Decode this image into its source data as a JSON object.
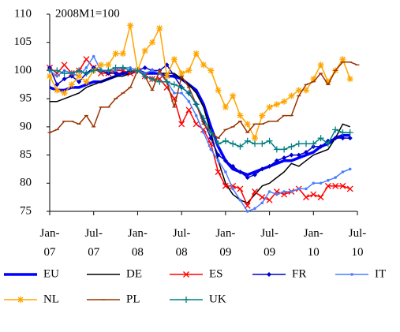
{
  "chart_data": {
    "type": "line",
    "annotation": "2008M1=100",
    "x": [
      "2007-01",
      "2007-02",
      "2007-03",
      "2007-04",
      "2007-05",
      "2007-06",
      "2007-07",
      "2007-08",
      "2007-09",
      "2007-10",
      "2007-11",
      "2007-12",
      "2008-01",
      "2008-02",
      "2008-03",
      "2008-04",
      "2008-05",
      "2008-06",
      "2008-07",
      "2008-08",
      "2008-09",
      "2008-10",
      "2008-11",
      "2008-12",
      "2009-01",
      "2009-02",
      "2009-03",
      "2009-04",
      "2009-05",
      "2009-06",
      "2009-07",
      "2009-08",
      "2009-09",
      "2009-10",
      "2009-11",
      "2009-12",
      "2010-01",
      "2010-02",
      "2010-03",
      "2010-04",
      "2010-05",
      "2010-06",
      "2010-07"
    ],
    "xlim": [
      "2007-01",
      "2010-07"
    ],
    "xticks": [
      {
        "value": "2007-01",
        "label": "Jan-07"
      },
      {
        "value": "2007-07",
        "label": "Jul-07"
      },
      {
        "value": "2008-01",
        "label": "Jan-08"
      },
      {
        "value": "2008-07",
        "label": "Jul-08"
      },
      {
        "value": "2009-01",
        "label": "Jan-09"
      },
      {
        "value": "2009-07",
        "label": "Jul-09"
      },
      {
        "value": "2010-01",
        "label": "Jan-10"
      },
      {
        "value": "2010-07",
        "label": "Jul-10"
      }
    ],
    "ylim": [
      75,
      110
    ],
    "yticks": [
      75,
      80,
      85,
      90,
      95,
      100,
      105,
      110
    ],
    "series": [
      {
        "name": "EU",
        "color": "#0000ff",
        "marker": "none",
        "line_width": 3.5,
        "values": [
          97,
          96.5,
          96.5,
          97,
          97,
          97.5,
          98,
          98,
          98.5,
          99,
          99.5,
          99.5,
          100,
          99.5,
          99.5,
          99.5,
          99,
          99,
          98.5,
          97.5,
          96.5,
          94,
          90,
          86.5,
          84,
          82.5,
          82,
          81.5,
          82,
          82.5,
          83,
          83.5,
          84,
          84,
          84.5,
          85,
          85.5,
          86.5,
          87,
          88,
          88.5,
          88.5,
          null
        ]
      },
      {
        "name": "DE",
        "color": "#000000",
        "marker": "none",
        "line_width": 1.5,
        "values": [
          94.5,
          94.5,
          95,
          95.5,
          96,
          97,
          97.5,
          98,
          98.5,
          99,
          99,
          99.5,
          100,
          99.5,
          100,
          99.5,
          99.5,
          99.5,
          98.5,
          97.5,
          96,
          93.5,
          89,
          84,
          80,
          78,
          77,
          76.5,
          78,
          79.5,
          80,
          81,
          82,
          83.5,
          83,
          84,
          85,
          85.5,
          86,
          88,
          90.5,
          90,
          null
        ]
      },
      {
        "name": "ES",
        "color": "#ff0000",
        "marker": "x",
        "line_width": 1.5,
        "values": [
          100.5,
          99.5,
          101,
          99.5,
          100,
          102,
          100.5,
          99.5,
          99.5,
          100,
          100,
          99.5,
          100,
          99,
          98.5,
          98.5,
          97,
          95,
          90.5,
          93,
          90.5,
          89.5,
          87,
          82,
          79.5,
          79.5,
          79,
          76,
          78.5,
          77.5,
          77,
          78.5,
          78,
          78.5,
          79,
          77.5,
          78,
          77.5,
          79.5,
          79.5,
          79.5,
          79,
          null
        ]
      },
      {
        "name": "FR",
        "color": "#0000cc",
        "marker": "diamond",
        "line_width": 1.5,
        "values": [
          100.5,
          97.5,
          98.5,
          99,
          98,
          99.5,
          100.5,
          100,
          99.5,
          99.5,
          99.5,
          100,
          100,
          100.5,
          100,
          100,
          101,
          99,
          97,
          96,
          94,
          91,
          88,
          85,
          84,
          83,
          82,
          81,
          81.5,
          82.5,
          83,
          84,
          84.5,
          85,
          85,
          85.5,
          86.5,
          86.5,
          87.5,
          88,
          88,
          88,
          null
        ]
      },
      {
        "name": "IT",
        "color": "#4a7dff",
        "marker": "dot",
        "line_width": 1.5,
        "values": [
          100,
          99,
          100,
          99.5,
          99,
          100.5,
          102.5,
          100,
          100,
          100,
          100.5,
          100.5,
          100,
          99.5,
          100,
          99.5,
          98,
          96,
          96,
          94.5,
          92,
          89,
          86,
          84,
          82,
          79,
          77,
          75,
          75.5,
          76.5,
          78.5,
          78,
          78.5,
          78.5,
          79,
          79,
          80,
          80,
          80.5,
          81,
          82,
          82.5,
          null
        ]
      },
      {
        "name": "NL",
        "color": "#ffa500",
        "marker": "star",
        "line_width": 1.5,
        "values": [
          99,
          96.5,
          96,
          97.5,
          99,
          98,
          100,
          101,
          101,
          103,
          103,
          108,
          100,
          103.5,
          105,
          107.5,
          99,
          102,
          99.5,
          100,
          103,
          101,
          100,
          96.5,
          93.5,
          95.5,
          92,
          90.5,
          88,
          92,
          93.5,
          94,
          94.5,
          95.5,
          96.5,
          96.5,
          98.5,
          101,
          98,
          100,
          102,
          98.5,
          null
        ]
      },
      {
        "name": "PL",
        "color": "#993300",
        "marker": "dash",
        "line_width": 1.5,
        "values": [
          89,
          89.5,
          91,
          91,
          90.5,
          92,
          90,
          93.5,
          93.5,
          95,
          96,
          97,
          100,
          99,
          96.5,
          100,
          98,
          93.5,
          99,
          97,
          94,
          90.5,
          89,
          88,
          89.5,
          90,
          91,
          89,
          90.5,
          90.5,
          91,
          91,
          92,
          92,
          95.5,
          97.5,
          98,
          99.5,
          97.5,
          100,
          101.5,
          101.5,
          101
        ]
      },
      {
        "name": "UK",
        "color": "#008080",
        "marker": "plus",
        "line_width": 1.5,
        "values": [
          100,
          100,
          99.5,
          99.5,
          100,
          99.5,
          100,
          100,
          100,
          100.5,
          100.5,
          100,
          100,
          99,
          98.5,
          98,
          98,
          97.5,
          97,
          96,
          94,
          91.5,
          89,
          87,
          87.5,
          87,
          86.5,
          87.5,
          87,
          87,
          87.5,
          86,
          86,
          86.5,
          87,
          87,
          87,
          88,
          87,
          89.5,
          89,
          89,
          null
        ]
      }
    ]
  }
}
